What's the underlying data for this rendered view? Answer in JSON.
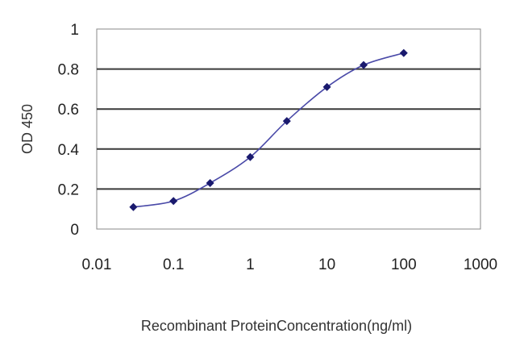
{
  "chart_data": {
    "type": "line",
    "title": "",
    "xlabel": "Recombinant ProteinConcentration(ng/ml)",
    "ylabel": "OD 450",
    "x_scale": "log",
    "xlim": [
      0.01,
      1000
    ],
    "ylim": [
      0,
      1
    ],
    "x_ticks": [
      {
        "value": 0.01,
        "label": "0.01"
      },
      {
        "value": 0.1,
        "label": "0.1"
      },
      {
        "value": 1,
        "label": "1"
      },
      {
        "value": 10,
        "label": "10"
      },
      {
        "value": 100,
        "label": "100"
      },
      {
        "value": 1000,
        "label": "1000"
      }
    ],
    "y_ticks": [
      {
        "value": 0,
        "label": "0"
      },
      {
        "value": 0.2,
        "label": "0.2"
      },
      {
        "value": 0.4,
        "label": "0.4"
      },
      {
        "value": 0.6,
        "label": "0.6"
      },
      {
        "value": 0.8,
        "label": "0.8"
      },
      {
        "value": 1,
        "label": "1"
      }
    ],
    "grid": {
      "horizontal": true,
      "vertical": false
    },
    "series": [
      {
        "color": "#4a4aa8",
        "marker_color": "#1a1a6e",
        "marker": "diamond",
        "points": [
          {
            "x": 0.03,
            "y": 0.11
          },
          {
            "x": 0.1,
            "y": 0.14
          },
          {
            "x": 0.3,
            "y": 0.23
          },
          {
            "x": 1,
            "y": 0.36
          },
          {
            "x": 3,
            "y": 0.54
          },
          {
            "x": 10,
            "y": 0.71
          },
          {
            "x": 30,
            "y": 0.82
          },
          {
            "x": 100,
            "y": 0.88
          }
        ]
      }
    ]
  }
}
